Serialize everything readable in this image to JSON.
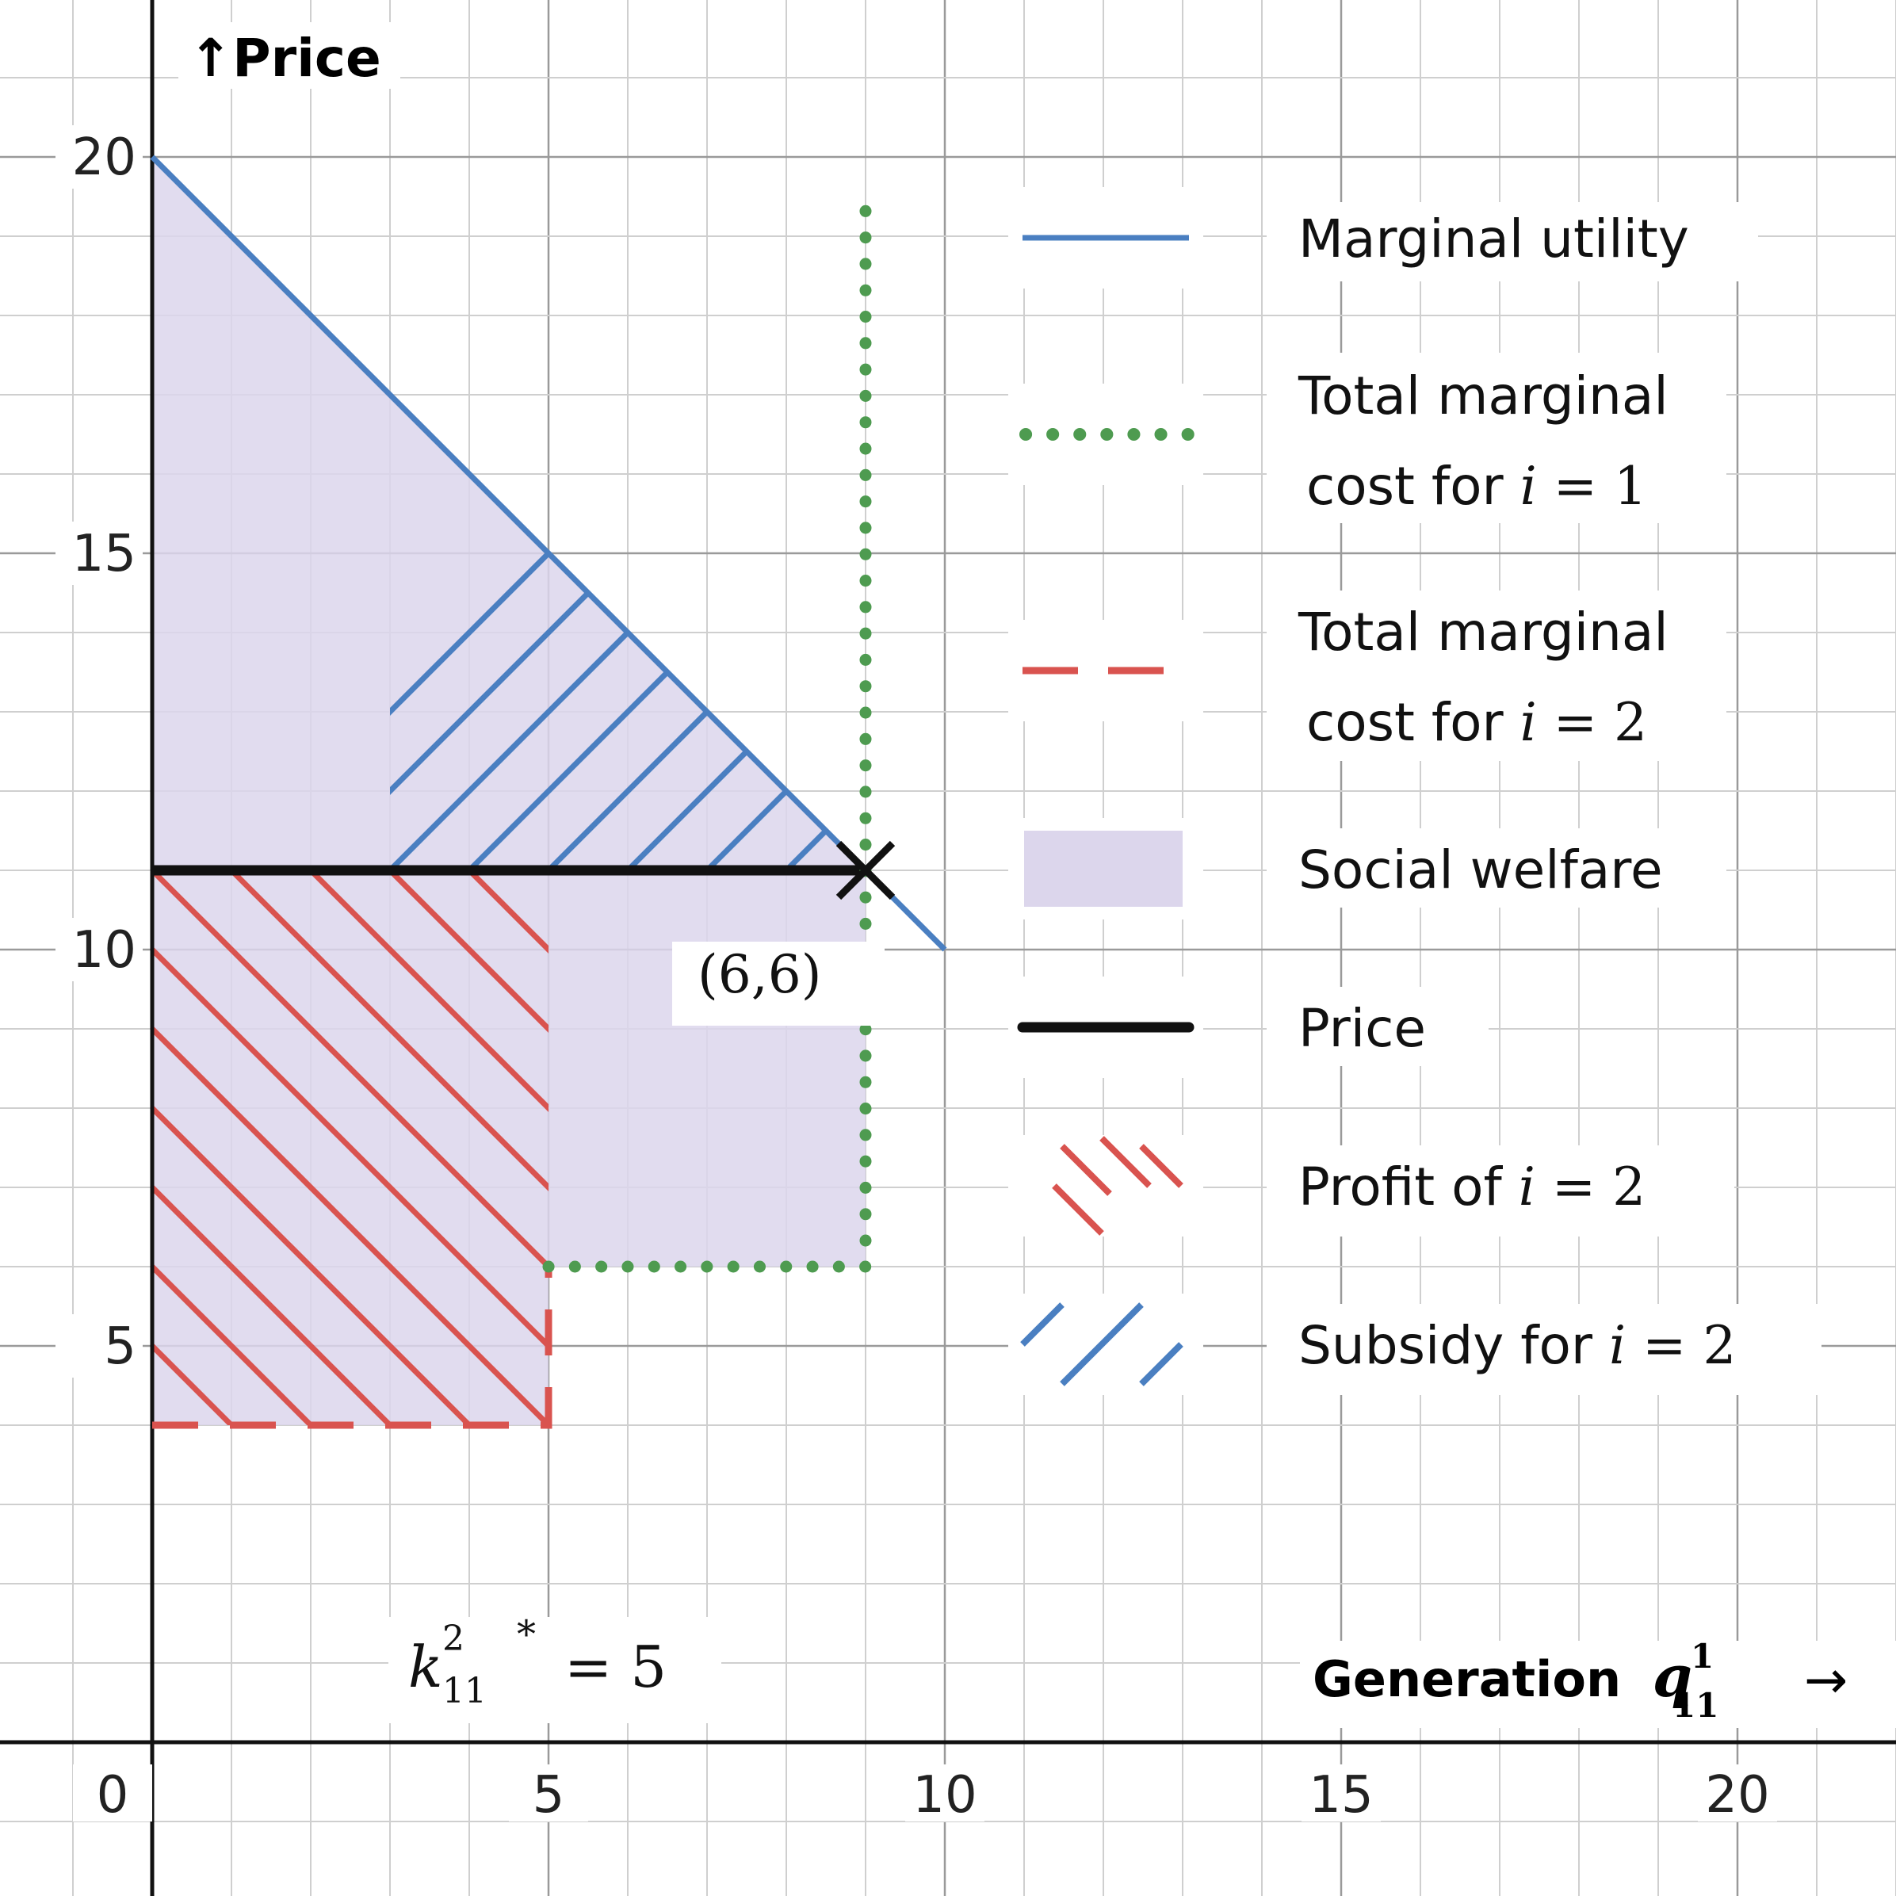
{
  "chart_data": {
    "type": "line",
    "ylabel": "↑Price",
    "xlabel": {
      "text": "Generation",
      "math_base": "q",
      "math_sup": "1",
      "math_sub": "11",
      "arrow": "→"
    },
    "xlim": [
      0,
      22
    ],
    "ylim": [
      -4,
      24
    ],
    "x_ticks": [
      0,
      5,
      10,
      15,
      20
    ],
    "y_ticks": [
      5,
      10,
      15,
      20
    ],
    "x_tick_labels": [
      "0",
      "5",
      "10",
      "15",
      "20"
    ],
    "y_tick_labels": [
      "5",
      "10",
      "15",
      "20"
    ],
    "grid": true,
    "grid_minor": 1,
    "series": [
      {
        "key": "marginal_utility",
        "name": "Marginal utility",
        "style": "solid",
        "color": "#4a7fc1",
        "points": [
          [
            0,
            20
          ],
          [
            10,
            10
          ]
        ]
      },
      {
        "key": "mc1",
        "name_line1": "Total marginal",
        "name_line2": "cost for i = 1",
        "style": "dotted",
        "color": "#4e9b50",
        "points": [
          [
            5,
            6
          ],
          [
            9,
            6
          ],
          [
            9,
            19.6
          ]
        ]
      },
      {
        "key": "mc2",
        "name_line1": "Total marginal",
        "name_line2": "cost for i = 2",
        "style": "dashed",
        "color": "#d9534f",
        "points": [
          [
            0,
            4
          ],
          [
            5,
            4
          ],
          [
            5,
            6
          ]
        ]
      },
      {
        "key": "price",
        "name": "Price",
        "style": "solid-thick",
        "color": "#111111",
        "points": [
          [
            0,
            11
          ],
          [
            9,
            11
          ]
        ]
      }
    ],
    "areas": [
      {
        "key": "social_welfare",
        "name": "Social welfare",
        "color": "#dcd6ec",
        "polygon": [
          [
            0,
            20
          ],
          [
            9,
            11
          ],
          [
            9,
            6
          ],
          [
            5,
            6
          ],
          [
            5,
            4
          ],
          [
            0,
            4
          ]
        ]
      },
      {
        "key": "profit_i2",
        "name": "Profit of i = 2",
        "color": "#d9534f",
        "hatch": "backslash",
        "rect": [
          0,
          4,
          5,
          11
        ]
      },
      {
        "key": "subsidy_i2",
        "name": "Subsidy for i = 2",
        "color": "#4a7fc1",
        "hatch": "slash",
        "polygon": [
          [
            3,
            11
          ],
          [
            9,
            11
          ],
          [
            3,
            17
          ]
        ]
      }
    ],
    "annotations": [
      {
        "key": "intersection",
        "text": "(6,6)",
        "marker": "×",
        "point": [
          9,
          11
        ]
      },
      {
        "key": "k",
        "base": "k",
        "sup": "2",
        "sub": "11",
        "star": "*",
        "rhs": "= 5"
      }
    ]
  },
  "legend": {
    "placement": "right",
    "items": [
      {
        "key": "marginal_utility",
        "label": "Marginal utility"
      },
      {
        "key": "mc1",
        "line1": "Total marginal",
        "line2_pre": "cost for ",
        "line2_var": "i",
        "line2_post": " = 1"
      },
      {
        "key": "mc2",
        "line1": "Total marginal",
        "line2_pre": "cost for ",
        "line2_var": "i",
        "line2_post": " = 2"
      },
      {
        "key": "social_welfare",
        "label": "Social welfare"
      },
      {
        "key": "price",
        "label": "Price"
      },
      {
        "key": "profit_i2",
        "pre": "Profit of ",
        "var": "i",
        "post": " = 2"
      },
      {
        "key": "subsidy_i2",
        "pre": "Subsidy for ",
        "var": "i",
        "post": " = 2"
      }
    ]
  }
}
